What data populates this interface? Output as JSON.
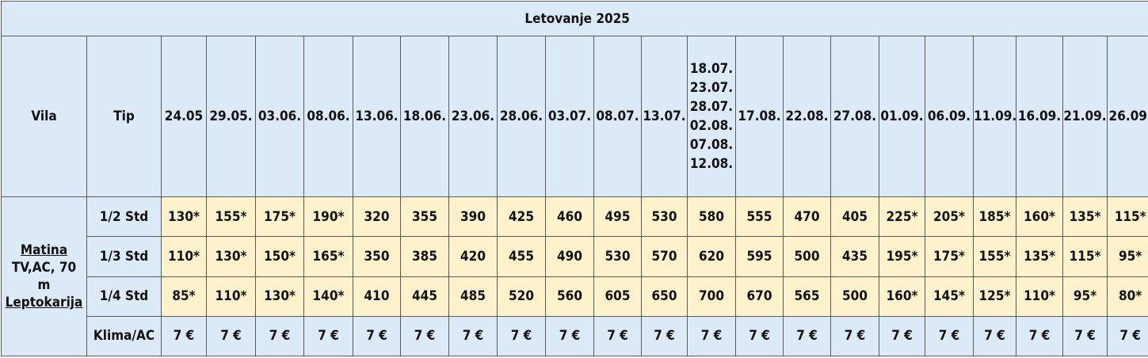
{
  "title": "Letovanje 2025",
  "headers": {
    "vila": "Vila",
    "tip": "Tip",
    "dates": [
      "24.05",
      "29.05.",
      "03.06.",
      "08.06.",
      "13.06.",
      "18.06.",
      "23.06.",
      "28.06.",
      "03.07.",
      "08.07.",
      "13.07.",
      [
        "18.07.",
        "23.07.",
        "28.07.",
        "02.08.",
        "07.08.",
        "12.08."
      ],
      "17.08.",
      "22.08.",
      "27.08.",
      "01.09.",
      "06.09.",
      "11.09.",
      "16.09.",
      "21.09.",
      "26.09."
    ]
  },
  "villa": {
    "name": "Matina",
    "desc1": "TV,AC, 70",
    "desc2": "m",
    "location": "Leptokarija"
  },
  "rows": [
    {
      "type": "1/2 Std",
      "prices": [
        "130*",
        "155*",
        "175*",
        "190*",
        "320",
        "355",
        "390",
        "425",
        "460",
        "495",
        "530",
        "580",
        "555",
        "470",
        "405",
        "225*",
        "205*",
        "185*",
        "160*",
        "135*",
        "115*"
      ]
    },
    {
      "type": "1/3 Std",
      "prices": [
        "110*",
        "130*",
        "150*",
        "165*",
        "350",
        "385",
        "420",
        "455",
        "490",
        "530",
        "570",
        "620",
        "595",
        "500",
        "435",
        "195*",
        "175*",
        "155*",
        "135*",
        "115*",
        "95*"
      ]
    },
    {
      "type": "1/4 Std",
      "prices": [
        "85*",
        "110*",
        "130*",
        "140*",
        "410",
        "445",
        "485",
        "520",
        "560",
        "605",
        "650",
        "700",
        "670",
        "565",
        "500",
        "160*",
        "145*",
        "125*",
        "110*",
        "95*",
        "80*"
      ]
    },
    {
      "type": "Klima/AC",
      "prices": [
        "7 €",
        "7 €",
        "7 €",
        "7 €",
        "7 €",
        "7 €",
        "7 €",
        "7 €",
        "7 €",
        "7 €",
        "7 €",
        "7 €",
        "7 €",
        "7 €",
        "7 €",
        "7 €",
        "7 €",
        "7 €",
        "7 €",
        "7 €",
        "7 €"
      ]
    }
  ],
  "colors": {
    "header_bg": "#dce9f7",
    "price_bg": "#fdf2cc",
    "border": "#5a5a5a"
  }
}
